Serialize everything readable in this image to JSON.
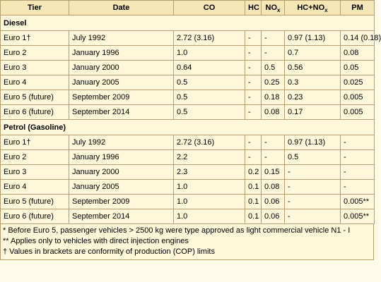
{
  "headers": {
    "tier": "Tier",
    "date": "Date",
    "co": "CO",
    "hc": "HC",
    "nox_main": "NO",
    "nox_sub": "x",
    "hcnox_main": "HC+NO",
    "hcnox_sub": "x",
    "pm": "PM"
  },
  "sections": [
    {
      "title": "Diesel",
      "rows": [
        {
          "tier": "Euro 1†",
          "date": "July 1992",
          "co": "2.72 (3.16)",
          "hc": "-",
          "nox": "-",
          "hcnox": "0.97 (1.13)",
          "pm": "0.14 (0.18)"
        },
        {
          "tier": "Euro 2",
          "date": "January 1996",
          "co": "1.0",
          "hc": "-",
          "nox": "-",
          "hcnox": "0.7",
          "pm": "0.08"
        },
        {
          "tier": "Euro 3",
          "date": "January 2000",
          "co": "0.64",
          "hc": "-",
          "nox": "0.5",
          "hcnox": "0.56",
          "pm": "0.05"
        },
        {
          "tier": "Euro 4",
          "date": "January 2005",
          "co": "0.5",
          "hc": "-",
          "nox": "0.25",
          "hcnox": "0.3",
          "pm": "0.025"
        },
        {
          "tier": "Euro 5 (future)",
          "date": "September 2009",
          "co": "0.5",
          "hc": "-",
          "nox": "0.18",
          "hcnox": "0.23",
          "pm": "0.005"
        },
        {
          "tier": "Euro 6 (future)",
          "date": "September 2014",
          "co": "0.5",
          "hc": "-",
          "nox": "0.08",
          "hcnox": "0.17",
          "pm": "0.005"
        }
      ]
    },
    {
      "title": "Petrol (Gasoline)",
      "rows": [
        {
          "tier": "Euro 1†",
          "date": "July 1992",
          "co": "2.72 (3.16)",
          "hc": "-",
          "nox": "-",
          "hcnox": "0.97 (1.13)",
          "pm": "-"
        },
        {
          "tier": "Euro 2",
          "date": "January 1996",
          "co": "2.2",
          "hc": "-",
          "nox": "-",
          "hcnox": "0.5",
          "pm": "-"
        },
        {
          "tier": "Euro 3",
          "date": "January 2000",
          "co": "2.3",
          "hc": "0.2",
          "nox": "0.15",
          "hcnox": "-",
          "pm": "-"
        },
        {
          "tier": "Euro 4",
          "date": "January 2005",
          "co": "1.0",
          "hc": "0.1",
          "nox": "0.08",
          "hcnox": "-",
          "pm": "-"
        },
        {
          "tier": "Euro 5 (future)",
          "date": "September 2009",
          "co": "1.0",
          "hc": "0.1",
          "nox": "0.06",
          "hcnox": "-",
          "pm": "0.005**"
        },
        {
          "tier": "Euro 6 (future)",
          "date": "September 2014",
          "co": "1.0",
          "hc": "0.1",
          "nox": "0.06",
          "hcnox": "-",
          "pm": "0.005**"
        }
      ]
    }
  ],
  "footnotes": [
    "* Before Euro 5, passenger vehicles > 2500 kg were type approved as light commercial vehicle N1 - I",
    "** Applies only to vehicles with direct injection engines",
    "† Values in brackets are conformity of production (COP) limits"
  ],
  "colors": {
    "background": "#fff7da",
    "header_bg": "#f5e6b6",
    "border": "#b79e6e"
  }
}
